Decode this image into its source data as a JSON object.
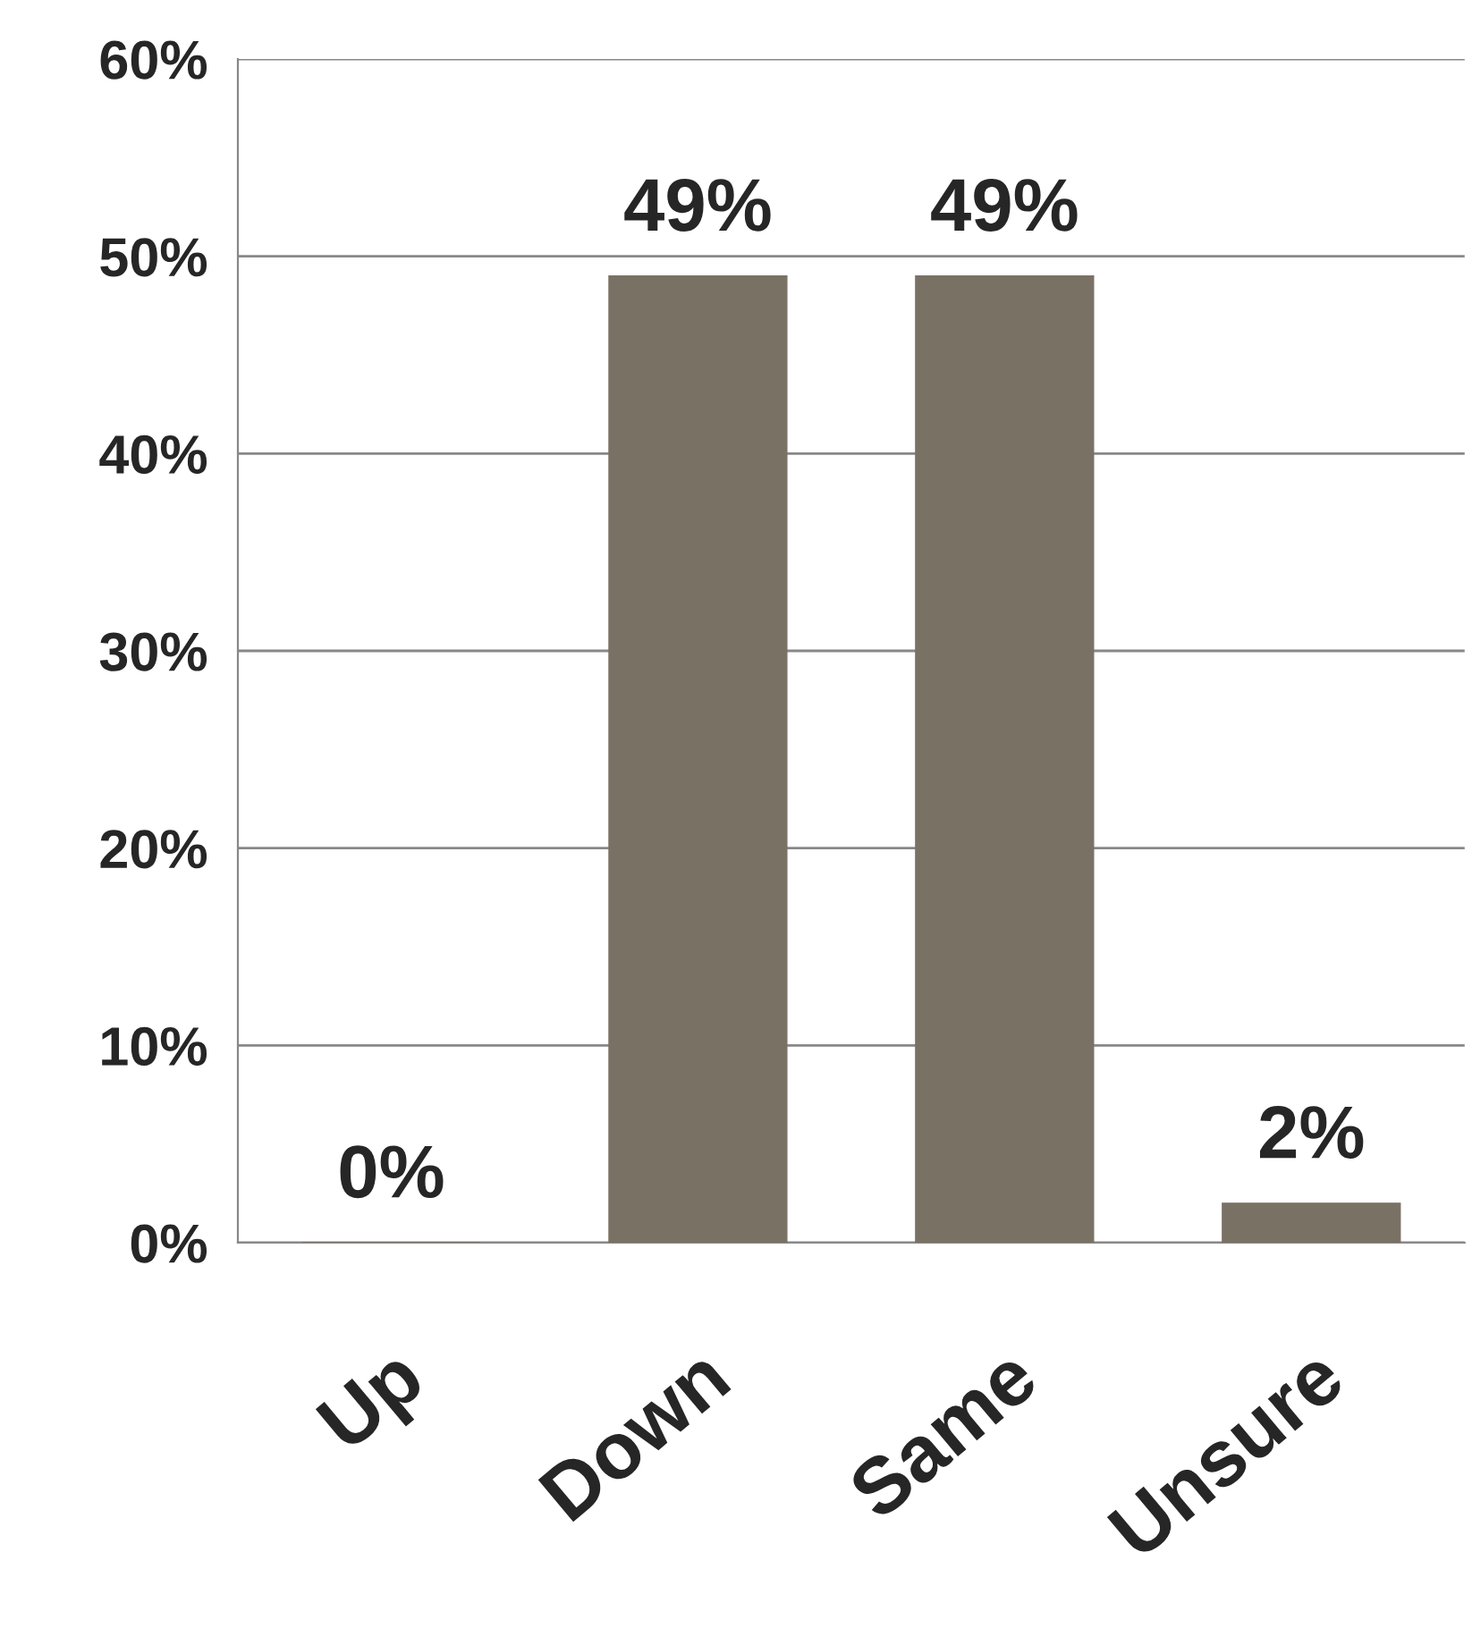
{
  "chart_data": {
    "type": "bar",
    "categories": [
      "Up",
      "Down",
      "Same",
      "Unsure"
    ],
    "values": [
      0,
      49,
      49,
      2
    ],
    "value_labels": [
      "0%",
      "49%",
      "49%",
      "2%"
    ],
    "color": "#7a7165",
    "ylim": [
      0,
      60
    ],
    "yticks": [
      {
        "value": 0,
        "label": "0%"
      },
      {
        "value": 10,
        "label": "10%"
      },
      {
        "value": 20,
        "label": "20%"
      },
      {
        "value": 30,
        "label": "30%"
      },
      {
        "value": 40,
        "label": "40%"
      },
      {
        "value": 50,
        "label": "50%"
      },
      {
        "value": 60,
        "label": "60%"
      }
    ],
    "grid": "y"
  }
}
